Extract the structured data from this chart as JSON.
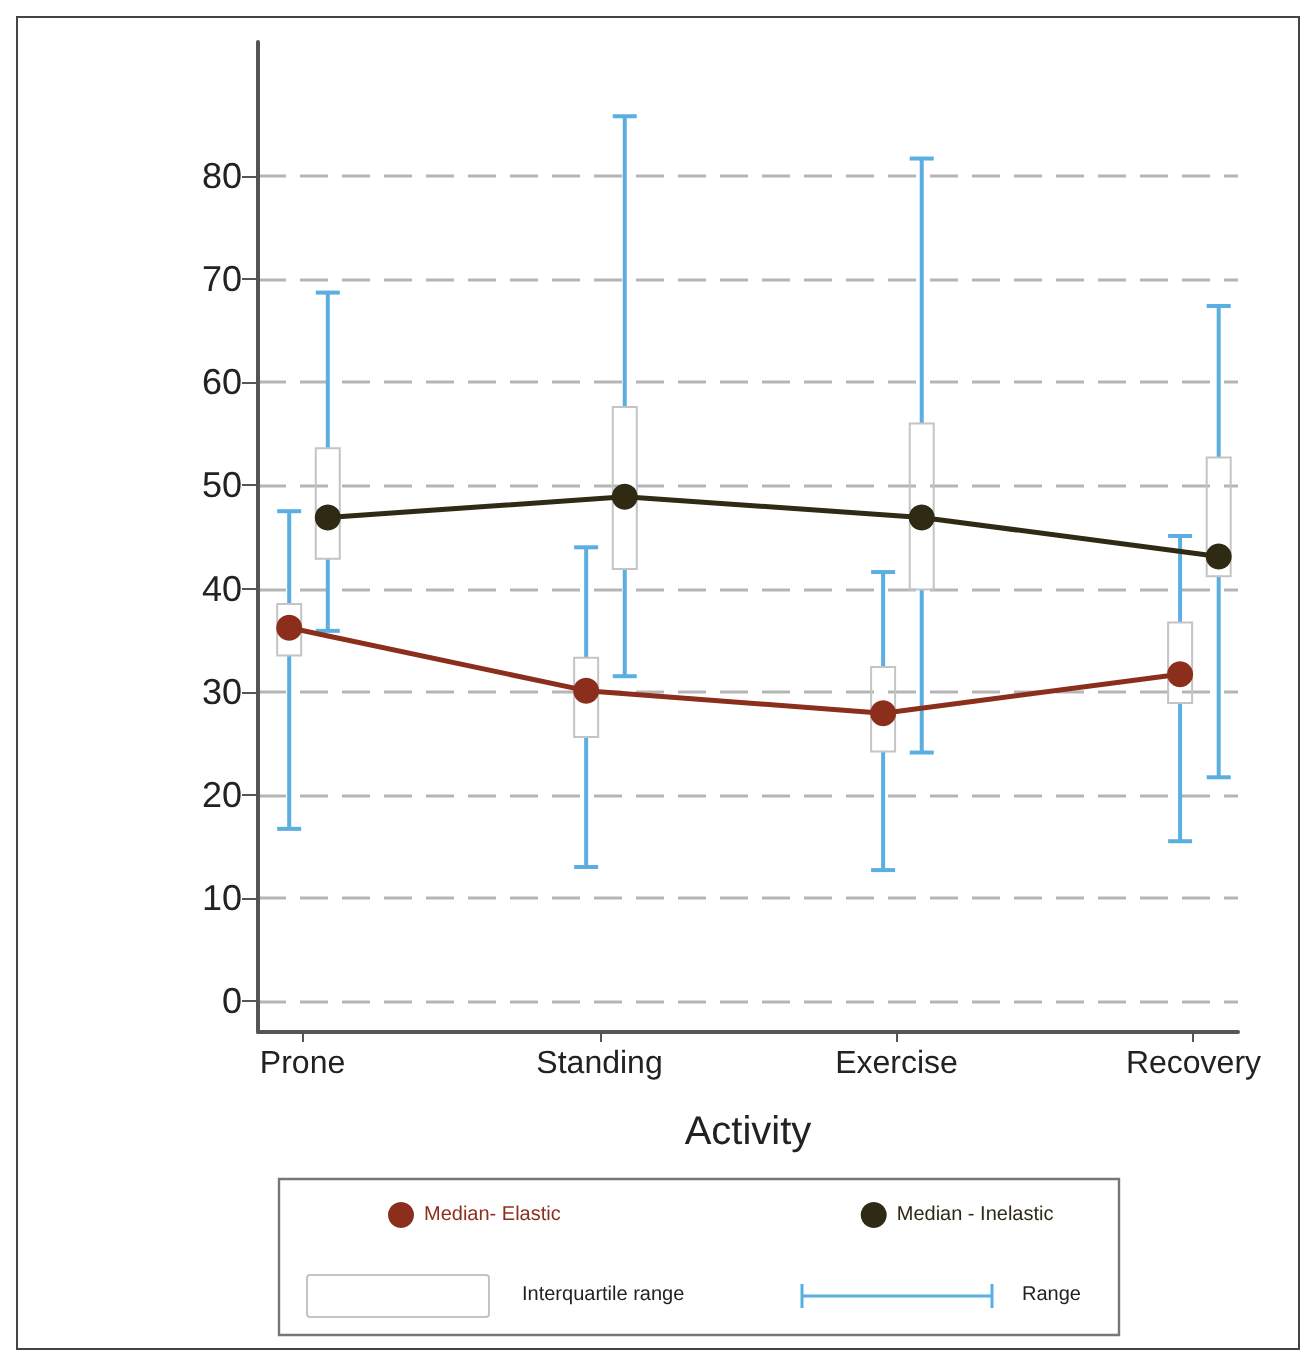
{
  "chart_data": {
    "type": "box",
    "xlabel": "Activity",
    "categories": [
      "Prone",
      "Standing",
      "Exercise",
      "Recovery"
    ],
    "series": [
      {
        "boxes": [
          {
            "low": 16.7,
            "q1": 33.5,
            "median": 36.2,
            "q3": 38.5,
            "high": 47.5
          },
          {
            "low": 13,
            "q1": 25.6,
            "median": 30.1,
            "q3": 33.3,
            "high": 44
          },
          {
            "low": 12.7,
            "q1": 24.2,
            "median": 27.9,
            "q3": 32.4,
            "high": 41.6
          },
          {
            "low": 15.5,
            "q1": 28.9,
            "median": 31.7,
            "q3": 36.7,
            "high": 45.1
          }
        ]
      },
      {
        "boxes": [
          {
            "low": 35.9,
            "q1": 42.9,
            "median": 46.9,
            "q3": 53.6,
            "high": 68.7
          },
          {
            "low": 31.5,
            "q1": 41.9,
            "median": 48.9,
            "q3": 57.6,
            "high": 85.8
          },
          {
            "low": 24.1,
            "q1": 39.9,
            "median": 46.9,
            "q3": 56,
            "high": 81.7
          },
          {
            "low": 21.7,
            "q1": 41.2,
            "median": 43.1,
            "q3": 52.7,
            "high": 67.4
          }
        ]
      },
      {
        "type": "line",
        "name": "Median- Elastic",
        "color": "#8b2f1c",
        "values": [
          36.2,
          30.1,
          27.9,
          31.7
        ]
      },
      {
        "type": "line",
        "name": "Median - Inelastic",
        "color": "#2e2a14",
        "values": [
          46.9,
          48.9,
          46.9,
          43.1
        ]
      }
    ],
    "annotations": [
      "Interquartile range",
      "Range"
    ],
    "ylim": [
      -3,
      93
    ],
    "yticks": [
      0,
      10,
      20,
      30,
      40,
      50,
      60,
      70,
      80
    ],
    "grid": "y",
    "legend": "bottom",
    "line_style": "solid"
  }
}
